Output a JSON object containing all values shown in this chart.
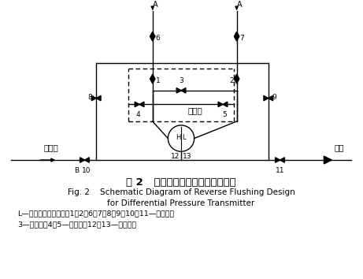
{
  "title_cn": "图 2   差压变送器反冲水设计示意图",
  "title_en_line1": "Fig. 2    Schematic Diagram of Reverse Flushing Design",
  "title_en_line2": "for Differential Pressure Transmitter",
  "caption_line1": "L—压力变送器低压侧；1、2、6、7、8、9、10、11—截止阀；",
  "caption_line2": "3—平衡阀；4、5—排污阀；12、13—排污丝堵",
  "bg_color": "#ffffff",
  "line_color": "#000000"
}
